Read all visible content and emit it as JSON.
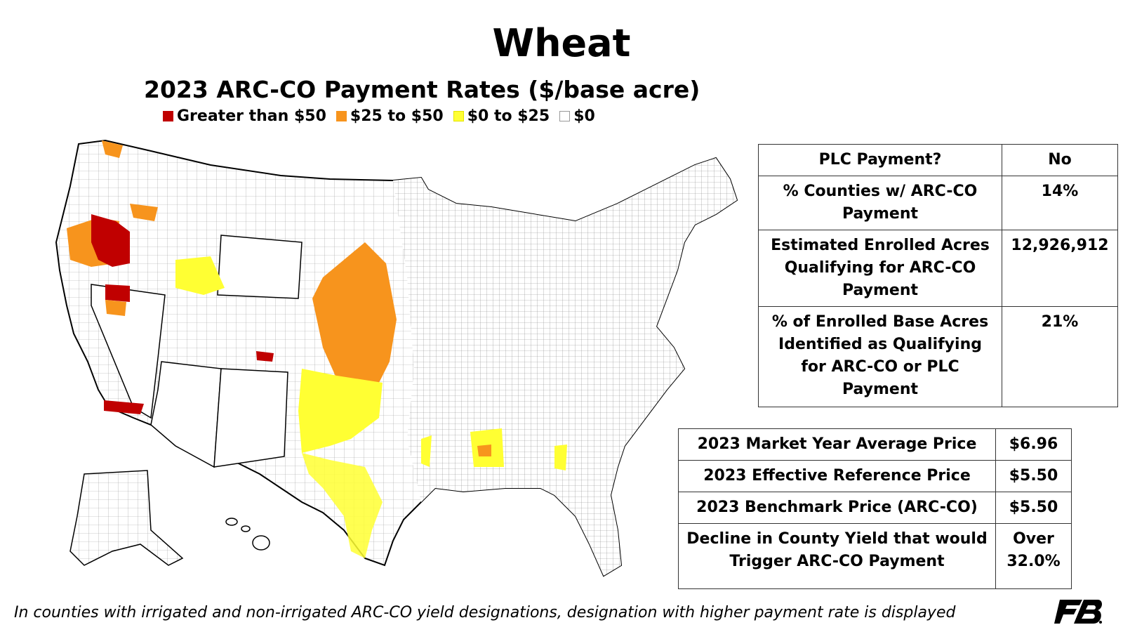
{
  "title": "Wheat",
  "subtitle": "2023 ARC-CO Payment Rates ($/base acre)",
  "legend": [
    {
      "label": "Greater than $50",
      "color": "#c00000"
    },
    {
      "label": "$25 to $50",
      "color": "#f7941d"
    },
    {
      "label": "$0 to $25",
      "color": "#ffff33"
    },
    {
      "label": "$0",
      "color": "#ffffff"
    }
  ],
  "plc_table": {
    "rows": [
      {
        "label": "PLC Payment?",
        "value": "No"
      },
      {
        "label": "% Counties w/ ARC-CO Payment",
        "value": "14%"
      },
      {
        "label": "Estimated Enrolled Acres Qualifying for ARC-CO Payment",
        "value": "12,926,912"
      },
      {
        "label": "% of Enrolled Base Acres Identified as Qualifying for ARC-CO or PLC Payment",
        "value": "21%"
      }
    ]
  },
  "price_table": {
    "rows": [
      {
        "label": "2023 Market Year Average Price",
        "value": "$6.96"
      },
      {
        "label": "2023 Effective Reference Price",
        "value": "$5.50"
      },
      {
        "label": "2023 Benchmark Price (ARC-CO)",
        "value": "$5.50"
      },
      {
        "label": "Decline in County Yield that would Trigger ARC-CO Payment",
        "value": "Over 32.0%"
      }
    ]
  },
  "footnote": "In counties with irrigated and non-irrigated ARC-CO yield designations, designation with higher payment rate is displayed"
}
